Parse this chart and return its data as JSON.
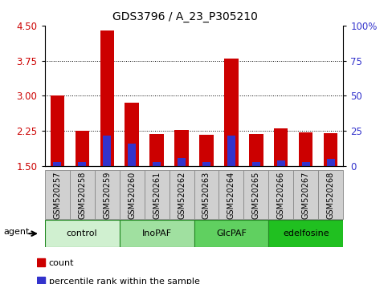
{
  "title": "GDS3796 / A_23_P305210",
  "samples": [
    "GSM520257",
    "GSM520258",
    "GSM520259",
    "GSM520260",
    "GSM520261",
    "GSM520262",
    "GSM520263",
    "GSM520264",
    "GSM520265",
    "GSM520266",
    "GSM520267",
    "GSM520268"
  ],
  "red_values": [
    3.0,
    2.25,
    4.4,
    2.85,
    2.18,
    2.28,
    2.17,
    3.8,
    2.18,
    2.3,
    2.22,
    2.2
  ],
  "blue_values_pct": [
    3.0,
    3.0,
    22.0,
    16.0,
    3.0,
    6.0,
    3.0,
    22.0,
    3.0,
    4.0,
    3.0,
    5.0
  ],
  "ylim_left": [
    1.5,
    4.5
  ],
  "ylim_right": [
    0,
    100
  ],
  "yticks_left": [
    1.5,
    2.25,
    3.0,
    3.75,
    4.5
  ],
  "yticks_right": [
    0,
    25,
    50,
    75,
    100
  ],
  "bar_bottom": 1.5,
  "bar_width": 0.55,
  "blue_bar_width": 0.35,
  "groups": [
    {
      "label": "control",
      "start": 0,
      "end": 3,
      "color": "#d0f0d0"
    },
    {
      "label": "InoPAF",
      "start": 3,
      "end": 6,
      "color": "#a0e0a0"
    },
    {
      "label": "GlcPAF",
      "start": 6,
      "end": 9,
      "color": "#60d060"
    },
    {
      "label": "edelfosine",
      "start": 9,
      "end": 12,
      "color": "#20c020"
    }
  ],
  "red_color": "#cc0000",
  "blue_color": "#3333cc",
  "grid_color": "#000000",
  "plot_bg": "#ffffff",
  "tick_label_color_left": "#cc0000",
  "tick_label_color_right": "#3333cc",
  "xtick_box_color": "#d0d0d0",
  "xtick_box_border": "#888888",
  "legend_red": "count",
  "legend_blue": "percentile rank within the sample",
  "agent_label": "agent"
}
